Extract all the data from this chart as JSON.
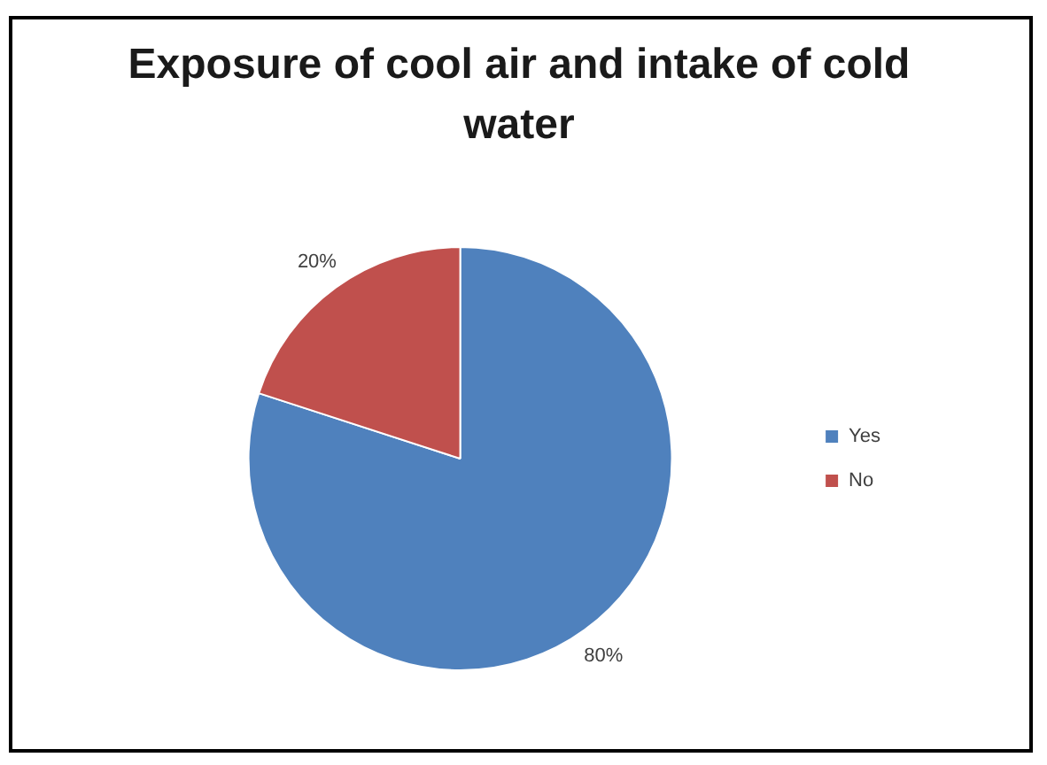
{
  "chart_data": {
    "type": "pie",
    "title": "Exposure of cool air and intake of cold water",
    "categories": [
      "Yes",
      "No"
    ],
    "values": [
      80,
      20
    ],
    "colors": [
      "#4f81bd",
      "#c0504d"
    ],
    "value_labels": [
      "80%",
      "20%"
    ],
    "legend": "right"
  }
}
